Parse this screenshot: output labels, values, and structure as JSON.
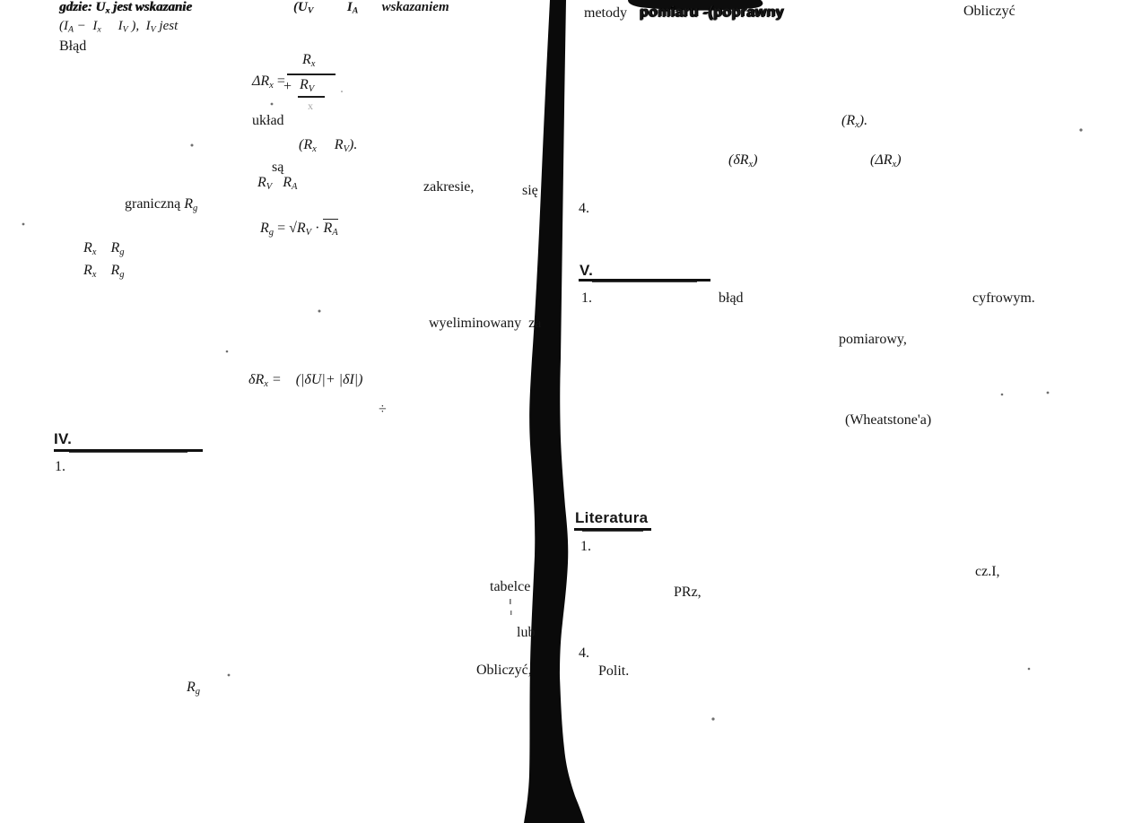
{
  "colors": {
    "ink": "#161616",
    "paper": "#ffffff"
  },
  "left": {
    "gdzie_runs": [
      {
        "t": "gdzie: ",
        "c": "it bd"
      },
      {
        "t": "U",
        "c": "it bd"
      },
      {
        "t": "x",
        "c": "it bd sub"
      },
      {
        "t": " jest wskazanie",
        "c": "it bd"
      }
    ],
    "ia_runs": [
      {
        "t": "(I",
        "c": "it"
      },
      {
        "t": "A",
        "c": "it sub"
      },
      {
        "t": " −  I",
        "c": "it"
      },
      {
        "t": "x",
        "c": "it sub"
      },
      {
        "t": "     I",
        "c": "it"
      },
      {
        "t": "V",
        "c": "it sub"
      },
      {
        "t": " ),  I",
        "c": "it"
      },
      {
        "t": "V",
        "c": "it sub"
      },
      {
        "t": " jest",
        "c": "it"
      }
    ],
    "blad": "Błąd",
    "graniczna_runs": [
      {
        "t": "graniczną "
      },
      {
        "t": "R",
        "c": "it"
      },
      {
        "t": "g",
        "c": "it sub"
      }
    ],
    "rxrg1_runs": [
      {
        "t": "R",
        "c": "it"
      },
      {
        "t": "x",
        "c": "it sub"
      },
      {
        "t": "    R",
        "c": "it"
      },
      {
        "t": "g",
        "c": "it sub"
      }
    ],
    "rxrg2_runs": [
      {
        "t": "R",
        "c": "it"
      },
      {
        "t": "x",
        "c": "it sub"
      },
      {
        "t": "    R",
        "c": "it"
      },
      {
        "t": "g",
        "c": "it sub"
      }
    ],
    "heading_iv": "IV.",
    "item_1a": "1.",
    "rg_bottom_runs": [
      {
        "t": "R",
        "c": "it"
      },
      {
        "t": "g",
        "c": "it sub"
      }
    ]
  },
  "mid": {
    "uv_runs": [
      {
        "t": "(U",
        "c": "it bd"
      },
      {
        "t": "V",
        "c": "it bd sub"
      },
      {
        "t": "          I",
        "c": "it bd"
      },
      {
        "t": "A",
        "c": "it bd sub"
      },
      {
        "t": "       wskazaniem",
        "c": "it bd"
      }
    ],
    "formula_drx": {
      "lhs_runs": [
        {
          "t": "ΔR",
          "c": "it"
        },
        {
          "t": "x",
          "c": "it sub"
        },
        {
          "t": " ="
        }
      ],
      "num_runs": [
        {
          "t": "R",
          "c": "it"
        },
        {
          "t": "x",
          "c": "it sub"
        }
      ],
      "plus": "+",
      "rv_runs": [
        {
          "t": "R",
          "c": "it"
        },
        {
          "t": "V",
          "c": "it sub"
        }
      ],
      "faint_mark": "x",
      "trail_dot": "."
    },
    "uklad": "układ",
    "rxrv_runs": [
      {
        "t": "(R",
        "c": "it"
      },
      {
        "t": "x",
        "c": "it sub"
      },
      {
        "t": "     R",
        "c": "it"
      },
      {
        "t": "V",
        "c": "it sub"
      },
      {
        "t": ").",
        "c": "it"
      }
    ],
    "sa": "są",
    "rvra_runs": [
      {
        "t": "R",
        "c": "it"
      },
      {
        "t": "V",
        "c": "it sub"
      },
      {
        "t": "   R",
        "c": "it"
      },
      {
        "t": "A",
        "c": "it sub"
      }
    ],
    "zakresie": "zakresie,",
    "sie": "się",
    "rg_formula": {
      "lhs_runs": [
        {
          "t": "R",
          "c": "it"
        },
        {
          "t": "g",
          "c": "it sub"
        },
        {
          "t": " = √"
        },
        {
          "t": "R",
          "c": "it"
        },
        {
          "t": "V",
          "c": "it sub"
        },
        {
          "t": " · "
        }
      ],
      "ra_runs": [
        {
          "t": "R",
          "c": "it"
        },
        {
          "t": "A",
          "c": "it sub"
        }
      ]
    },
    "wyelim": "wyeliminowany  za",
    "drx_runs": [
      {
        "t": "δR",
        "c": "it"
      },
      {
        "t": "x",
        "c": "it sub"
      },
      {
        "t": " =    (|δU|+ |δI|)",
        "c": "it"
      }
    ],
    "divide": "÷",
    "tabelce": "tabelce",
    "lub": "lub",
    "obliczyc": "Obliczyć,"
  },
  "right": {
    "metody": "metody",
    "smudged": "pomiaru -(poprawny",
    "obliczyc_top": "Obliczyć",
    "rx_paren_runs": [
      {
        "t": "(R",
        "c": "it"
      },
      {
        "t": "x",
        "c": "it sub"
      },
      {
        "t": ").",
        "c": "it"
      }
    ],
    "drx_paren_runs": [
      {
        "t": "(δR",
        "c": "it"
      },
      {
        "t": "x",
        "c": "it sub"
      },
      {
        "t": ")",
        "c": "it"
      }
    ],
    "Drx_paren_runs": [
      {
        "t": "(ΔR",
        "c": "it"
      },
      {
        "t": "x",
        "c": "it sub"
      },
      {
        "t": ")",
        "c": "it"
      }
    ],
    "item_4a": "4.",
    "heading_v": "V.",
    "item_1b": "1.",
    "blad2": "błąd",
    "cyfrowym": "cyfrowym.",
    "pomiarowy": "pomiarowy,",
    "wheatstone": "(Wheatstone'a)",
    "heading_lit": "Literatura",
    "item_1c": "1.",
    "czI": "cz.I,",
    "prz": "PRz,",
    "item_4b": "4.",
    "polit": "Polit."
  }
}
